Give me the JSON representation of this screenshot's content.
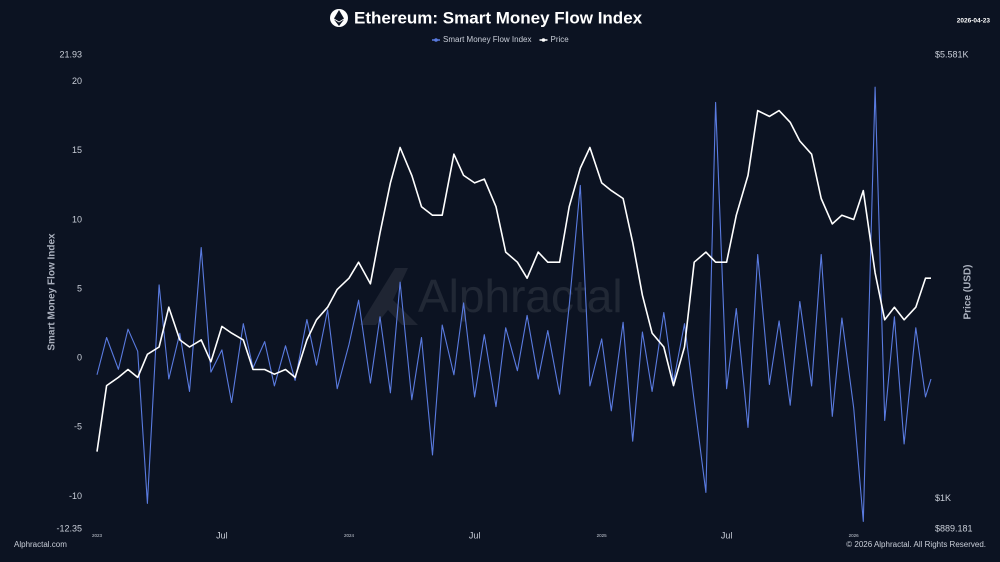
{
  "chart_data": {
    "type": "line",
    "title": "Ethereum: Smart Money Flow Index",
    "date": "2026-04-23",
    "y_label": "Smart Money Flow Index",
    "y2_label": "Price (USD)",
    "watermark": "Alphractal",
    "source": "Alphractal.com",
    "copyright": "© 2026 Alphractal. All Rights Reserved.",
    "y2_log": true,
    "grid": false,
    "legend": "top",
    "xlim": [
      "2022-12-19",
      "2026-04-23"
    ],
    "xticks": [
      {
        "value": "2023-01-01",
        "label": "2023"
      },
      {
        "value": "2023-07-01",
        "label": "Jul"
      },
      {
        "value": "2024-01-01",
        "label": "2024"
      },
      {
        "value": "2024-07-01",
        "label": "Jul"
      },
      {
        "value": "2025-01-01",
        "label": "2025"
      },
      {
        "value": "2025-07-01",
        "label": "Jul"
      },
      {
        "value": "2026-01-01",
        "label": "2026"
      }
    ],
    "ylim": [
      -12.35,
      21.93
    ],
    "yticks": [
      -12.35,
      -10,
      -5,
      0,
      5,
      10,
      15,
      20,
      21.93
    ],
    "y2lim": [
      889.181,
      5581
    ],
    "y2ticks": [
      {
        "value": 889.181,
        "label": "$889.181"
      },
      {
        "value": 1000,
        "label": "$1K"
      },
      {
        "value": 5581,
        "label": "$5.581K"
      }
    ],
    "x": [
      "2023-01-01",
      "2023-01-15",
      "2023-02-01",
      "2023-02-15",
      "2023-03-01",
      "2023-03-15",
      "2023-04-01",
      "2023-04-15",
      "2023-05-01",
      "2023-05-15",
      "2023-06-01",
      "2023-06-15",
      "2023-07-01",
      "2023-07-15",
      "2023-08-01",
      "2023-08-15",
      "2023-09-01",
      "2023-09-15",
      "2023-10-01",
      "2023-10-15",
      "2023-11-01",
      "2023-11-15",
      "2023-12-01",
      "2023-12-15",
      "2024-01-01",
      "2024-01-15",
      "2024-02-01",
      "2024-02-15",
      "2024-03-01",
      "2024-03-15",
      "2024-04-01",
      "2024-04-15",
      "2024-05-01",
      "2024-05-15",
      "2024-06-01",
      "2024-06-15",
      "2024-07-01",
      "2024-07-15",
      "2024-08-01",
      "2024-08-15",
      "2024-09-01",
      "2024-09-15",
      "2024-10-01",
      "2024-10-15",
      "2024-11-01",
      "2024-11-15",
      "2024-12-01",
      "2024-12-15",
      "2025-01-01",
      "2025-01-15",
      "2025-02-01",
      "2025-02-15",
      "2025-03-01",
      "2025-03-15",
      "2025-04-01",
      "2025-04-15",
      "2025-05-01",
      "2025-05-15",
      "2025-06-01",
      "2025-06-15",
      "2025-07-01",
      "2025-07-15",
      "2025-08-01",
      "2025-08-15",
      "2025-09-01",
      "2025-09-15",
      "2025-10-01",
      "2025-10-15",
      "2025-11-01",
      "2025-11-15",
      "2025-12-01",
      "2025-12-15",
      "2026-01-01",
      "2026-01-15",
      "2026-02-01",
      "2026-02-15",
      "2026-03-01",
      "2026-03-15",
      "2026-04-01",
      "2026-04-15",
      "2026-04-23"
    ],
    "series": [
      {
        "name": "Smart Money Flow Index",
        "color": "#5a7be0",
        "values": [
          -1.2,
          1.5,
          -0.8,
          2.1,
          0.5,
          -10.5,
          5.3,
          -1.5,
          1.8,
          -2.4,
          8.0,
          -1.0,
          0.6,
          -3.2,
          2.5,
          -0.7,
          1.2,
          -2.0,
          0.9,
          -1.6,
          2.8,
          -0.5,
          3.5,
          -2.2,
          1.0,
          4.2,
          -1.8,
          3.0,
          -2.5,
          5.5,
          -3.0,
          1.5,
          -7.0,
          2.4,
          -1.2,
          4.0,
          -2.8,
          1.7,
          -3.5,
          2.2,
          -0.9,
          3.1,
          -1.5,
          2.0,
          -2.6,
          3.8,
          12.5,
          -2.0,
          1.4,
          -3.8,
          2.6,
          -6.0,
          1.9,
          -2.4,
          3.3,
          -1.7,
          2.5,
          -3.1,
          -9.7,
          18.5,
          -2.2,
          3.6,
          -5.0,
          7.5,
          -1.9,
          2.7,
          -3.4,
          4.1,
          -2.0,
          7.5,
          -4.2,
          2.9,
          -3.6,
          -11.8,
          19.6,
          -4.5,
          3.0,
          -6.2,
          2.2,
          -2.8,
          -1.5
        ]
      },
      {
        "name": "Price",
        "color": "#ffffff",
        "axis": "y2",
        "values": [
          1200,
          1550,
          1600,
          1650,
          1600,
          1750,
          1800,
          2100,
          1850,
          1800,
          1850,
          1700,
          1950,
          1900,
          1850,
          1650,
          1650,
          1620,
          1650,
          1600,
          1850,
          2000,
          2100,
          2250,
          2350,
          2500,
          2300,
          2800,
          3400,
          3900,
          3500,
          3100,
          3000,
          3000,
          3800,
          3500,
          3400,
          3450,
          3100,
          2600,
          2500,
          2350,
          2600,
          2500,
          2500,
          3100,
          3600,
          3900,
          3400,
          3300,
          3200,
          2700,
          2200,
          1900,
          1800,
          1550,
          1800,
          2500,
          2600,
          2500,
          2500,
          3000,
          3500,
          4500,
          4400,
          4500,
          4300,
          4000,
          3800,
          3200,
          2900,
          3000,
          2950,
          3300,
          2400,
          2000,
          2100,
          2000,
          2100,
          2350,
          2350
        ]
      }
    ]
  }
}
